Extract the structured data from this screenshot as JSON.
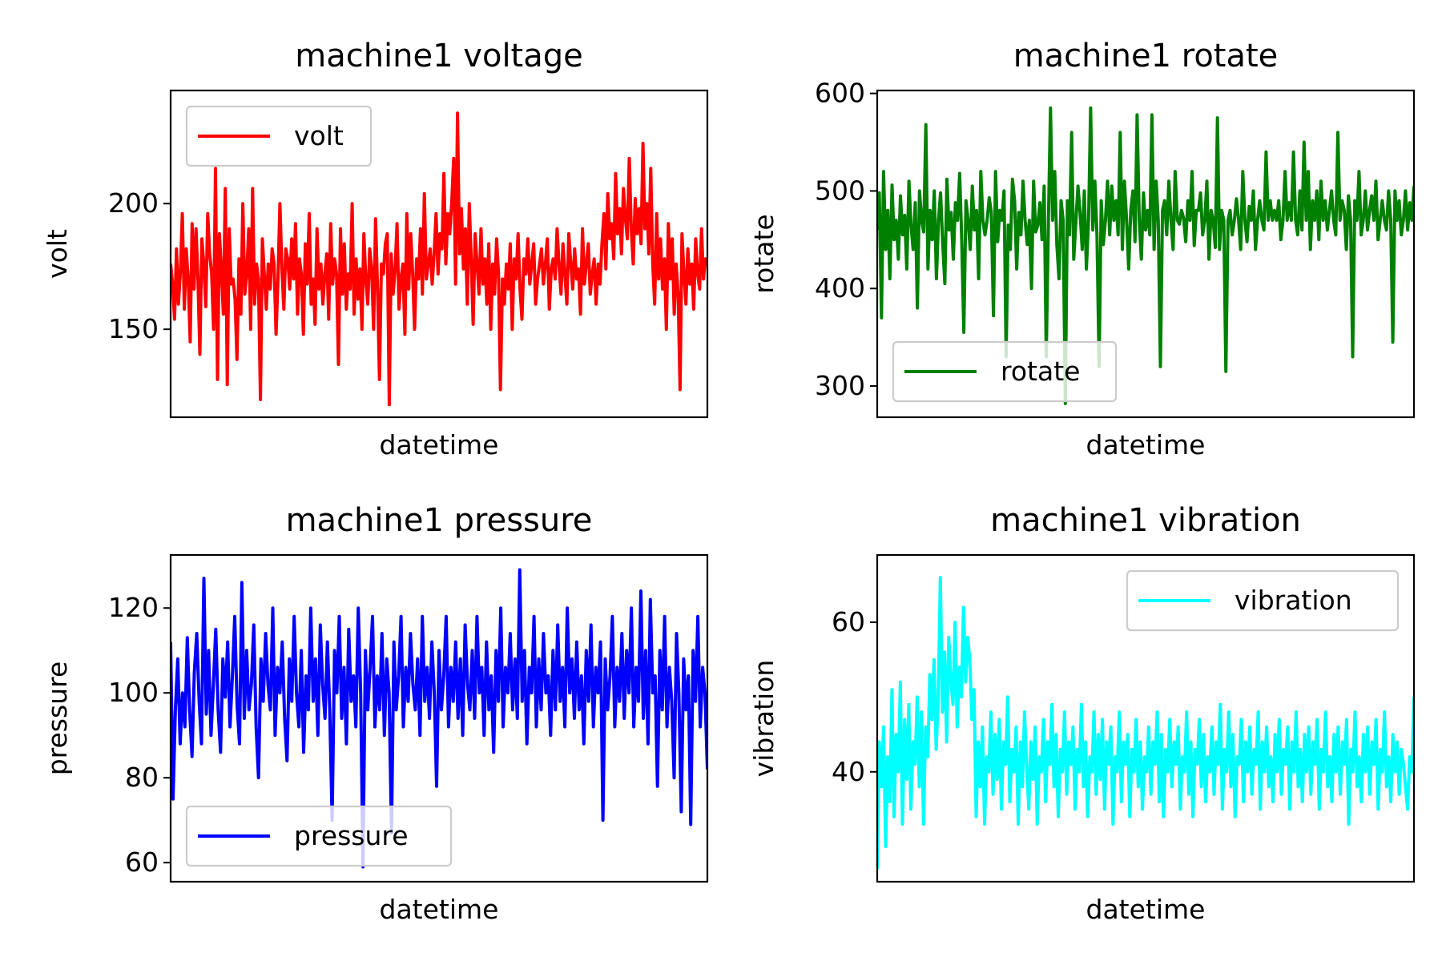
{
  "figure": {
    "background": "#ffffff"
  },
  "chart_data": [
    {
      "type": "line",
      "title": "machine1 voltage",
      "xlabel": "datetime",
      "ylabel": "volt",
      "ylim": [
        115,
        245
      ],
      "yticks": [
        150,
        200
      ],
      "xticks_shown": false,
      "legend_position": "upper left",
      "series": [
        {
          "name": "volt",
          "color": "#ff0000",
          "values": [
            176,
            168,
            154,
            182,
            160,
            173,
            196,
            158,
            182,
            170,
            145,
            192,
            166,
            190,
            170,
            140,
            186,
            176,
            159,
            196,
            180,
            172,
            150,
            214,
            130,
            188,
            174,
            156,
            206,
            128,
            190,
            168,
            170,
            162,
            138,
            178,
            156,
            200,
            164,
            172,
            190,
            150,
            206,
            160,
            176,
            170,
            122,
            186,
            172,
            158,
            176,
            166,
            182,
            176,
            148,
            170,
            200,
            174,
            158,
            182,
            178,
            166,
            186,
            170,
            192,
            156,
            178,
            172,
            148,
            184,
            168,
            196,
            160,
            170,
            152,
            190,
            166,
            176,
            160,
            172,
            180,
            154,
            192,
            168,
            178,
            172,
            136,
            190,
            164,
            184,
            158,
            172,
            166,
            200,
            156,
            178,
            162,
            174,
            150,
            188,
            170,
            160,
            182,
            174,
            150,
            194,
            166,
            130,
            176,
            172,
            184,
            188,
            120,
            180,
            164,
            174,
            192,
            158,
            170,
            176,
            148,
            196,
            166,
            188,
            172,
            150,
            178,
            170,
            190,
            164,
            204,
            170,
            176,
            182,
            168,
            180,
            196,
            172,
            188,
            182,
            212,
            176,
            196,
            188,
            200,
            218,
            168,
            236,
            180,
            198,
            174,
            190,
            160,
            200,
            178,
            152,
            188,
            176,
            164,
            190,
            168,
            178,
            160,
            184,
            150,
            176,
            164,
            186,
            172,
            126,
            170,
            160,
            176,
            166,
            184,
            150,
            178,
            170,
            188,
            166,
            154,
            178,
            172,
            186,
            168,
            176,
            184,
            160,
            170,
            176,
            182,
            168,
            176,
            186,
            158,
            174,
            178,
            170,
            190,
            176,
            164,
            184,
            172,
            160,
            188,
            176,
            166,
            182,
            170,
            174,
            156,
            190,
            168,
            176,
            184,
            164,
            172,
            178,
            160,
            176,
            168,
            184,
            196,
            174,
            204,
            186,
            192,
            178,
            212,
            188,
            198,
            180,
            206,
            194,
            186,
            218,
            190,
            176,
            202,
            188,
            198,
            184,
            224,
            190,
            200,
            180,
            214,
            176,
            160,
            196,
            170,
            186,
            166,
            178,
            150,
            192,
            170,
            186,
            156,
            176,
            164,
            126,
            188,
            172,
            160,
            182,
            168,
            176,
            158,
            186,
            172,
            166,
            190,
            170,
            178,
            176
          ]
        }
      ]
    },
    {
      "type": "line",
      "title": "machine1 rotate",
      "xlabel": "datetime",
      "ylabel": "rotate",
      "ylim": [
        268,
        603
      ],
      "yticks": [
        300,
        400,
        500,
        600
      ],
      "xticks_shown": false,
      "legend_position": "lower left",
      "series": [
        {
          "name": "rotate",
          "color": "#008000",
          "values": [
            460,
            498,
            370,
            520,
            440,
            480,
            410,
            506,
            450,
            470,
            430,
            495,
            455,
            475,
            420,
            510,
            465,
            440,
            488,
            380,
            500,
            470,
            458,
            568,
            420,
            480,
            450,
            500,
            410,
            470,
            498,
            445,
            405,
            512,
            460,
            478,
            430,
            488,
            470,
            518,
            450,
            355,
            490,
            470,
            440,
            505,
            460,
            480,
            410,
            520,
            470,
            455,
            470,
            493,
            478,
            372,
            520,
            448,
            480,
            470,
            500,
            330,
            465,
            440,
            512,
            490,
            420,
            478,
            455,
            510,
            470,
            445,
            470,
            400,
            510,
            458,
            465,
            488,
            450,
            505,
            330,
            470,
            585,
            470,
            520,
            445,
            410,
            490,
            470,
            282,
            490,
            455,
            560,
            430,
            468,
            505,
            478,
            440,
            500,
            420,
            470,
            585,
            460,
            510,
            455,
            320,
            490,
            445,
            470,
            510,
            455,
            505,
            470,
            490,
            455,
            560,
            440,
            510,
            470,
            420,
            480,
            500,
            448,
            578,
            470,
            430,
            498,
            460,
            480,
            455,
            578,
            440,
            510,
            470,
            320,
            480,
            490,
            455,
            510,
            470,
            440,
            520,
            470,
            466,
            480,
            472,
            448,
            490,
            470,
            520,
            444,
            480,
            480,
            498,
            455,
            470,
            510,
            430,
            480,
            470,
            442,
            575,
            440,
            480,
            470,
            315,
            470,
            480,
            455,
            470,
            492,
            470,
            440,
            520,
            470,
            448,
            484,
            470,
            500,
            440,
            470,
            490,
            470,
            460,
            540,
            470,
            490,
            470,
            480,
            470,
            490,
            450,
            470,
            520,
            470,
            488,
            470,
            540,
            470,
            455,
            500,
            460,
            550,
            470,
            520,
            440,
            490,
            470,
            500,
            450,
            510,
            470,
            490,
            460,
            480,
            500,
            470,
            455,
            560,
            470,
            490,
            480,
            440,
            495,
            470,
            330,
            490,
            470,
            520,
            455,
            470,
            500,
            460,
            480,
            495,
            470,
            510,
            450,
            470,
            490,
            470,
            460,
            500,
            470,
            345,
            500,
            470,
            490,
            455,
            470,
            500,
            460,
            488,
            470,
            505
          ]
        }
      ]
    },
    {
      "type": "line",
      "title": "machine1 pressure",
      "xlabel": "datetime",
      "ylabel": "pressure",
      "ylim": [
        55.5,
        132.5
      ],
      "yticks": [
        60,
        80,
        100,
        120
      ],
      "xticks_shown": false,
      "legend_position": "lower left",
      "series": [
        {
          "name": "pressure",
          "color": "#0000ff",
          "values": [
            112,
            75,
            96,
            108,
            88,
            100,
            92,
            113,
            96,
            85,
            105,
            114,
            98,
            88,
            127,
            95,
            110,
            90,
            102,
            115,
            96,
            86,
            108,
            99,
            112,
            92,
            104,
            118,
            97,
            88,
            126,
            94,
            110,
            96,
            102,
            116,
            92,
            80,
            108,
            98,
            114,
            102,
            96,
            120,
            90,
            106,
            100,
            112,
            94,
            84,
            108,
            98,
            118,
            100,
            92,
            110,
            86,
            104,
            96,
            120,
            98,
            108,
            90,
            116,
            102,
            94,
            112,
            96,
            70,
            110,
            100,
            118,
            94,
            106,
            88,
            115,
            98,
            104,
            92,
            120,
            100,
            59,
            110,
            96,
            106,
            118,
            92,
            104,
            96,
            114,
            90,
            108,
            100,
            67,
            112,
            96,
            104,
            118,
            92,
            106,
            98,
            114,
            102,
            96,
            108,
            90,
            118,
            98,
            106,
            94,
            112,
            100,
            78,
            110,
            96,
            104,
            118,
            92,
            106,
            98,
            112,
            94,
            108,
            90,
            116,
            102,
            96,
            110,
            94,
            118,
            100,
            106,
            90,
            112,
            96,
            104,
            86,
            110,
            98,
            120,
            92,
            106,
            100,
            114,
            96,
            108,
            94,
            129,
            98,
            110,
            88,
            106,
            100,
            118,
            92,
            108,
            96,
            114,
            100,
            104,
            90,
            110,
            96,
            116,
            98,
            106,
            92,
            120,
            100,
            108,
            94,
            112,
            96,
            104,
            88,
            110,
            98,
            116,
            92,
            106,
            100,
            112,
            70,
            108,
            96,
            104,
            118,
            92,
            106,
            98,
            114,
            94,
            110,
            100,
            120,
            92,
            106,
            98,
            124,
            94,
            110,
            88,
            122,
            100,
            104,
            78,
            110,
            96,
            118,
            92,
            106,
            98,
            80,
            114,
            100,
            72,
            108,
            96,
            104,
            69,
            110,
            98,
            118,
            92,
            106,
            100,
            82
          ]
        }
      ]
    },
    {
      "type": "line",
      "title": "machine1 vibration",
      "xlabel": "datetime",
      "ylabel": "vibration",
      "ylim": [
        25.3,
        69
      ],
      "yticks": [
        40,
        60
      ],
      "xticks_shown": false,
      "legend_position": "upper right",
      "series": [
        {
          "name": "vibration",
          "color": "#00ffff",
          "values": [
            27,
            44,
            38,
            46,
            30,
            42,
            36,
            51,
            34,
            45,
            40,
            52,
            33,
            47,
            39,
            49,
            35,
            44,
            41,
            50,
            38,
            48,
            33,
            46,
            42,
            53,
            47,
            55,
            43,
            50,
            66,
            48,
            56,
            44,
            58,
            52,
            49,
            60,
            46,
            54,
            50,
            62,
            52,
            58,
            55,
            47,
            51,
            34,
            44,
            38,
            46,
            33,
            42,
            40,
            48,
            37,
            45,
            39,
            47,
            35,
            44,
            41,
            50,
            36,
            43,
            40,
            46,
            33,
            44,
            38,
            48,
            41,
            35,
            44,
            39,
            46,
            33,
            42,
            40,
            47,
            36,
            44,
            41,
            49,
            38,
            45,
            34,
            43,
            40,
            48,
            37,
            44,
            41,
            46,
            35,
            43,
            40,
            49,
            38,
            44,
            34,
            42,
            40,
            48,
            37,
            45,
            39,
            47,
            35,
            44,
            41,
            46,
            33,
            42,
            40,
            48,
            36,
            44,
            41,
            45,
            34,
            43,
            40,
            47,
            38,
            44,
            35,
            42,
            40,
            46,
            37,
            44,
            41,
            48,
            36,
            45,
            34,
            43,
            40,
            47,
            38,
            44,
            41,
            46,
            35,
            42,
            40,
            48,
            37,
            44,
            34,
            43,
            41,
            47,
            38,
            45,
            36,
            42,
            40,
            46,
            37,
            44,
            41,
            49,
            35,
            43,
            40,
            48,
            38,
            45,
            34,
            42,
            41,
            47,
            36,
            44,
            40,
            46,
            37,
            43,
            41,
            48,
            35,
            44,
            40,
            46,
            38,
            42,
            36,
            45,
            40,
            47,
            37,
            43,
            41,
            46,
            35,
            44,
            40,
            48,
            38,
            43,
            36,
            45,
            40,
            46,
            37,
            44,
            41,
            47,
            35,
            43,
            40,
            48,
            38,
            42,
            36,
            45,
            40,
            46,
            37,
            44,
            41,
            47,
            33,
            43,
            40,
            48,
            38,
            42,
            36,
            45,
            40,
            46,
            37,
            44,
            41,
            47,
            35,
            43,
            40,
            48,
            38,
            42,
            36,
            45,
            40,
            44,
            37,
            43,
            41,
            38,
            35,
            42,
            40,
            50
          ]
        }
      ]
    }
  ]
}
